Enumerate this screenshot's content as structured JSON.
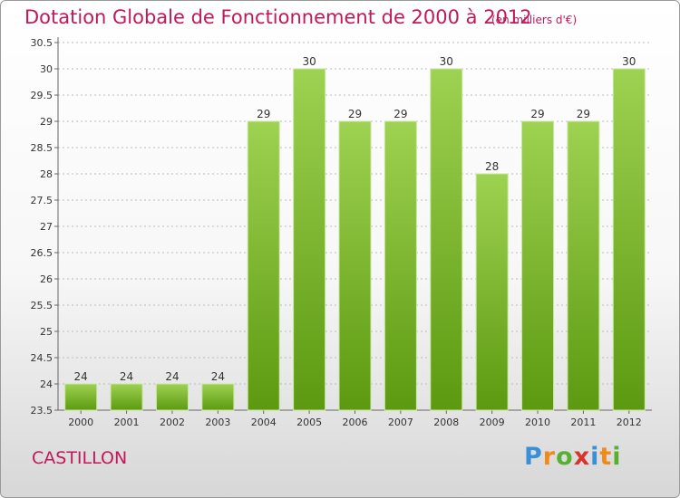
{
  "title": "Dotation Globale de Fonctionnement de 2000 à 2012",
  "subtitle": "(en milliers d'€)",
  "commune": "CASTILLON",
  "logo_text": "Proxiti",
  "colors": {
    "title": "#c0185a",
    "bar_top": "#9ed252",
    "bar_bottom": "#5c9910",
    "grid": "#bbbbbb"
  },
  "chart_data": {
    "type": "bar",
    "title": "Dotation Globale de Fonctionnement de 2000 à 2012",
    "subtitle": "(en milliers d'€)",
    "categories": [
      "2000",
      "2001",
      "2002",
      "2003",
      "2004",
      "2005",
      "2006",
      "2007",
      "2008",
      "2009",
      "2010",
      "2011",
      "2012"
    ],
    "values": [
      24,
      24,
      24,
      24,
      29,
      30,
      29,
      29,
      30,
      28,
      29,
      29,
      30
    ],
    "data_labels": [
      "24",
      "24",
      "24",
      "24",
      "29",
      "30",
      "29",
      "29",
      "30",
      "28",
      "29",
      "29",
      "30"
    ],
    "ylim": [
      23.5,
      30.5
    ],
    "yticks": [
      "23.5",
      "24",
      "24.5",
      "25",
      "25.5",
      "26",
      "26.5",
      "27",
      "27.5",
      "28",
      "28.5",
      "29",
      "29.5",
      "30",
      "30.5"
    ],
    "xlabel": "",
    "ylabel": "",
    "grid": true
  }
}
